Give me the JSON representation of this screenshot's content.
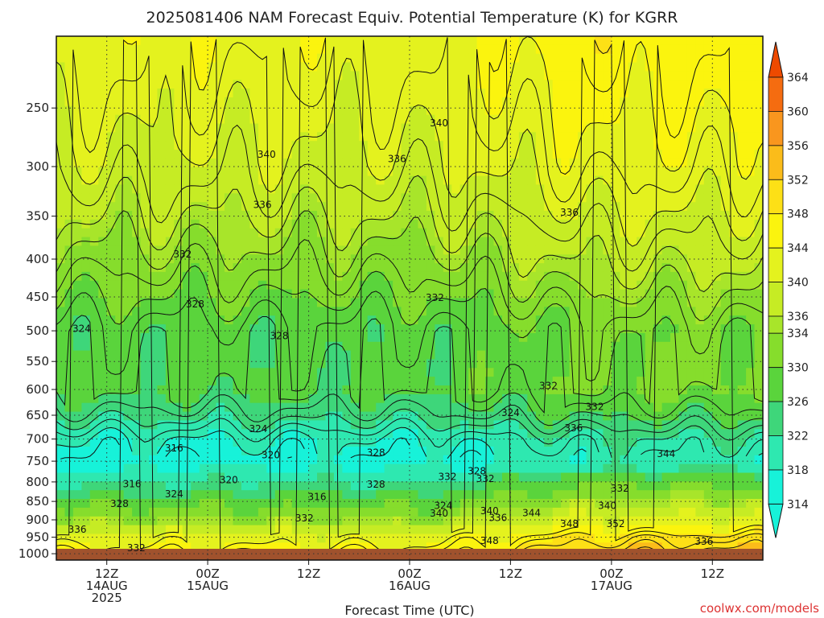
{
  "chart_data": {
    "type": "heatmap",
    "title": "2025081406 NAM Forecast Equiv. Potential Temperature (K) for KGRR",
    "xlabel": "Forecast Time (UTC)",
    "ylabel": "",
    "x_ticks": [
      {
        "hour": 6,
        "lines": [
          "12Z",
          "14AUG",
          "2025"
        ]
      },
      {
        "hour": 18,
        "lines": [
          "00Z",
          "15AUG"
        ]
      },
      {
        "hour": 30,
        "lines": [
          "12Z"
        ]
      },
      {
        "hour": 42,
        "lines": [
          "00Z",
          "16AUG"
        ]
      },
      {
        "hour": 54,
        "lines": [
          "12Z"
        ]
      },
      {
        "hour": 66,
        "lines": [
          "00Z",
          "17AUG"
        ]
      },
      {
        "hour": 78,
        "lines": [
          "12Z"
        ]
      }
    ],
    "xlim": [
      0,
      84
    ],
    "y_scale": "log-pressure",
    "y_ticks": [
      250,
      300,
      350,
      400,
      450,
      500,
      550,
      600,
      650,
      700,
      750,
      800,
      850,
      900,
      950,
      1000
    ],
    "ylim": [
      1020,
      200
    ],
    "colorbar": {
      "levels": [
        314,
        318,
        322,
        326,
        330,
        334,
        336,
        340,
        344,
        348,
        352,
        356,
        360,
        364
      ]
    },
    "contour_labels": [
      {
        "v": "340",
        "h": 45.5,
        "p": 262
      },
      {
        "v": "340",
        "h": 25.0,
        "p": 289
      },
      {
        "v": "336",
        "h": 40.5,
        "p": 293
      },
      {
        "v": "336",
        "h": 24.5,
        "p": 338
      },
      {
        "v": "336",
        "h": 61.0,
        "p": 346
      },
      {
        "v": "332",
        "h": 15.0,
        "p": 394
      },
      {
        "v": "328",
        "h": 16.5,
        "p": 460
      },
      {
        "v": "332",
        "h": 45.0,
        "p": 451
      },
      {
        "v": "324",
        "h": 3.0,
        "p": 497
      },
      {
        "v": "328",
        "h": 26.5,
        "p": 508
      },
      {
        "v": "332",
        "h": 58.5,
        "p": 593
      },
      {
        "v": "332",
        "h": 64.0,
        "p": 633
      },
      {
        "v": "324",
        "h": 54.0,
        "p": 645
      },
      {
        "v": "336",
        "h": 61.5,
        "p": 677
      },
      {
        "v": "324",
        "h": 24.0,
        "p": 678
      },
      {
        "v": "316",
        "h": 14.0,
        "p": 720
      },
      {
        "v": "328",
        "h": 38.0,
        "p": 730
      },
      {
        "v": "320",
        "h": 25.5,
        "p": 736
      },
      {
        "v": "344",
        "h": 72.5,
        "p": 733
      },
      {
        "v": "328",
        "h": 50.0,
        "p": 774
      },
      {
        "v": "332",
        "h": 46.5,
        "p": 787
      },
      {
        "v": "332",
        "h": 51.0,
        "p": 792
      },
      {
        "v": "316",
        "h": 9.0,
        "p": 805
      },
      {
        "v": "320",
        "h": 20.5,
        "p": 795
      },
      {
        "v": "328",
        "h": 38.0,
        "p": 806
      },
      {
        "v": "332",
        "h": 67.0,
        "p": 816
      },
      {
        "v": "324",
        "h": 14.0,
        "p": 831
      },
      {
        "v": "316",
        "h": 31.0,
        "p": 838
      },
      {
        "v": "328",
        "h": 7.5,
        "p": 856
      },
      {
        "v": "324",
        "h": 46.0,
        "p": 861
      },
      {
        "v": "340",
        "h": 65.5,
        "p": 861
      },
      {
        "v": "340",
        "h": 51.5,
        "p": 876
      },
      {
        "v": "340",
        "h": 45.5,
        "p": 882
      },
      {
        "v": "344",
        "h": 56.5,
        "p": 881
      },
      {
        "v": "336",
        "h": 52.5,
        "p": 894
      },
      {
        "v": "332",
        "h": 29.5,
        "p": 895
      },
      {
        "v": "348",
        "h": 61.0,
        "p": 911
      },
      {
        "v": "352",
        "h": 66.5,
        "p": 911
      },
      {
        "v": "336",
        "h": 2.5,
        "p": 928
      },
      {
        "v": "348",
        "h": 51.5,
        "p": 960
      },
      {
        "v": "336",
        "h": 77.0,
        "p": 963
      },
      {
        "v": "332",
        "h": 9.5,
        "p": 982
      }
    ],
    "color_field": {
      "levels_per_pressure": [
        {
          "p": 200,
          "v": 343
        },
        {
          "p": 250,
          "v": 341
        },
        {
          "p": 300,
          "v": 339
        },
        {
          "p": 350,
          "v": 336
        },
        {
          "p": 400,
          "v": 333
        },
        {
          "p": 450,
          "v": 330
        },
        {
          "p": 500,
          "v": 327
        },
        {
          "p": 550,
          "v": 327
        },
        {
          "p": 600,
          "v": 327
        },
        {
          "p": 650,
          "v": 323
        },
        {
          "p": 700,
          "v": 318
        },
        {
          "p": 750,
          "v": 316
        },
        {
          "p": 800,
          "v": 322
        },
        {
          "p": 850,
          "v": 328
        },
        {
          "p": 900,
          "v": 334
        },
        {
          "p": 950,
          "v": 342
        },
        {
          "p": 1000,
          "v": 346
        }
      ],
      "late_period_offset": 6
    }
  },
  "credit": "coolwx.com/models"
}
